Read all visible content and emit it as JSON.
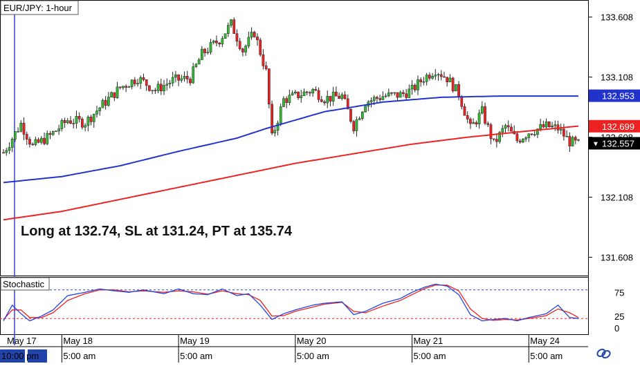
{
  "main_title": "EUR/JPY: 1-hour",
  "indicator_title": "Stochastic",
  "annotation": "Long at 132.74, SL at 131.24, PT at 135.74",
  "colors": {
    "up_candle": "#33bb33",
    "down_candle": "#ee2222",
    "ma_fast": "#2233cc",
    "ma_slow": "#ee2222",
    "stoch_k": "#2244dd",
    "stoch_d": "#ee2222",
    "frame": "#000000"
  },
  "chart_data": [
    {
      "type": "candlestick",
      "title": "EUR/JPY: 1-hour",
      "ylim": [
        131.45,
        133.75
      ],
      "y_ticks": [
        "133.608",
        "133.108",
        "132.608",
        "132.108",
        "131.608"
      ],
      "x_ticks": [
        {
          "bar": 0,
          "date": "May 17",
          "time": "10:00 pm"
        },
        {
          "bar": 20,
          "date": "May 18",
          "time": "5:00 am"
        },
        {
          "bar": 60,
          "date": "May 19",
          "time": "5:00 am"
        },
        {
          "bar": 100,
          "date": "May 20",
          "time": "5:00 am"
        },
        {
          "bar": 140,
          "date": "May 21",
          "time": "5:00 am"
        },
        {
          "bar": 180,
          "date": "May 24",
          "time": "5:00 am"
        }
      ],
      "price_labels": [
        {
          "value": "132.953",
          "series": "ma_fast"
        },
        {
          "value": "132.699",
          "series": "ma_slow"
        },
        {
          "value": "132.557",
          "series": "last"
        }
      ],
      "series": [
        {
          "key": "ma_fast",
          "start": 0,
          "end": 197,
          "points": [
            [
              0,
              132.23
            ],
            [
              20,
              132.28
            ],
            [
              40,
              132.37
            ],
            [
              60,
              132.49
            ],
            [
              80,
              132.6
            ],
            [
              90,
              132.68
            ],
            [
              110,
              132.82
            ],
            [
              130,
              132.9
            ],
            [
              150,
              132.94
            ],
            [
              170,
              132.95
            ],
            [
              197,
              132.95
            ]
          ]
        },
        {
          "key": "ma_slow",
          "start": 0,
          "end": 197,
          "points": [
            [
              0,
              131.92
            ],
            [
              20,
              131.99
            ],
            [
              40,
              132.09
            ],
            [
              60,
              132.19
            ],
            [
              80,
              132.29
            ],
            [
              100,
              132.39
            ],
            [
              120,
              132.47
            ],
            [
              140,
              132.55
            ],
            [
              160,
              132.61
            ],
            [
              180,
              132.66
            ],
            [
              197,
              132.7
            ]
          ]
        },
        {
          "key": "price",
          "points": [
            [
              0,
              132.48
            ],
            [
              6,
              132.72
            ],
            [
              10,
              132.53
            ],
            [
              16,
              132.62
            ],
            [
              22,
              132.75
            ],
            [
              28,
              132.73
            ],
            [
              34,
              132.88
            ],
            [
              40,
              133.02
            ],
            [
              46,
              133.1
            ],
            [
              52,
              133.0
            ],
            [
              58,
              133.08
            ],
            [
              64,
              133.1
            ],
            [
              68,
              133.3
            ],
            [
              74,
              133.42
            ],
            [
              78,
              133.55
            ],
            [
              82,
              133.33
            ],
            [
              86,
              133.48
            ],
            [
              90,
              133.15
            ],
            [
              92,
              132.6
            ],
            [
              96,
              132.92
            ],
            [
              100,
              132.95
            ],
            [
              106,
              133.0
            ],
            [
              110,
              132.93
            ],
            [
              116,
              132.95
            ],
            [
              120,
              132.7
            ],
            [
              124,
              132.9
            ],
            [
              130,
              132.95
            ],
            [
              136,
              132.96
            ],
            [
              140,
              133.0
            ],
            [
              144,
              133.1
            ],
            [
              148,
              133.17
            ],
            [
              152,
              133.1
            ],
            [
              156,
              132.97
            ],
            [
              160,
              132.68
            ],
            [
              164,
              132.82
            ],
            [
              168,
              132.55
            ],
            [
              172,
              132.7
            ],
            [
              176,
              132.58
            ],
            [
              180,
              132.65
            ],
            [
              186,
              132.7
            ],
            [
              190,
              132.68
            ],
            [
              194,
              132.57
            ],
            [
              197,
              132.55
            ]
          ]
        }
      ]
    },
    {
      "type": "line",
      "title": "Stochastic",
      "ylim": [
        0,
        100
      ],
      "y_ticks": [
        "75",
        "25",
        "0"
      ],
      "levels": [
        80,
        20
      ],
      "series": [
        {
          "key": "stoch_k",
          "points": [
            [
              0,
              15
            ],
            [
              3,
              48
            ],
            [
              6,
              30
            ],
            [
              9,
              15
            ],
            [
              13,
              25
            ],
            [
              17,
              38
            ],
            [
              22,
              68
            ],
            [
              28,
              75
            ],
            [
              33,
              82
            ],
            [
              38,
              78
            ],
            [
              43,
              75
            ],
            [
              48,
              80
            ],
            [
              55,
              72
            ],
            [
              60,
              82
            ],
            [
              65,
              72
            ],
            [
              70,
              70
            ],
            [
              75,
              82
            ],
            [
              80,
              68
            ],
            [
              84,
              72
            ],
            [
              88,
              48
            ],
            [
              92,
              18
            ],
            [
              96,
              30
            ],
            [
              100,
              38
            ],
            [
              106,
              48
            ],
            [
              110,
              52
            ],
            [
              116,
              55
            ],
            [
              120,
              28
            ],
            [
              124,
              35
            ],
            [
              130,
              52
            ],
            [
              136,
              62
            ],
            [
              140,
              75
            ],
            [
              144,
              85
            ],
            [
              148,
              92
            ],
            [
              152,
              88
            ],
            [
              156,
              70
            ],
            [
              160,
              28
            ],
            [
              164,
              15
            ],
            [
              168,
              18
            ],
            [
              172,
              20
            ],
            [
              176,
              15
            ],
            [
              180,
              22
            ],
            [
              186,
              30
            ],
            [
              190,
              48
            ],
            [
              194,
              22
            ],
            [
              197,
              20
            ]
          ]
        },
        {
          "key": "stoch_d",
          "points": [
            [
              0,
              18
            ],
            [
              3,
              38
            ],
            [
              6,
              38
            ],
            [
              9,
              22
            ],
            [
              13,
              22
            ],
            [
              17,
              32
            ],
            [
              22,
              58
            ],
            [
              28,
              72
            ],
            [
              33,
              80
            ],
            [
              38,
              80
            ],
            [
              43,
              76
            ],
            [
              48,
              78
            ],
            [
              55,
              75
            ],
            [
              60,
              78
            ],
            [
              65,
              76
            ],
            [
              70,
              71
            ],
            [
              75,
              78
            ],
            [
              80,
              72
            ],
            [
              84,
              70
            ],
            [
              88,
              58
            ],
            [
              92,
              25
            ],
            [
              96,
              26
            ],
            [
              100,
              35
            ],
            [
              106,
              44
            ],
            [
              110,
              50
            ],
            [
              116,
              54
            ],
            [
              120,
              35
            ],
            [
              124,
              32
            ],
            [
              130,
              46
            ],
            [
              136,
              58
            ],
            [
              140,
              70
            ],
            [
              144,
              82
            ],
            [
              148,
              90
            ],
            [
              152,
              90
            ],
            [
              156,
              78
            ],
            [
              160,
              40
            ],
            [
              164,
              20
            ],
            [
              168,
              16
            ],
            [
              172,
              18
            ],
            [
              176,
              17
            ],
            [
              180,
              20
            ],
            [
              186,
              26
            ],
            [
              190,
              40
            ],
            [
              194,
              32
            ],
            [
              197,
              22
            ]
          ]
        }
      ]
    }
  ]
}
